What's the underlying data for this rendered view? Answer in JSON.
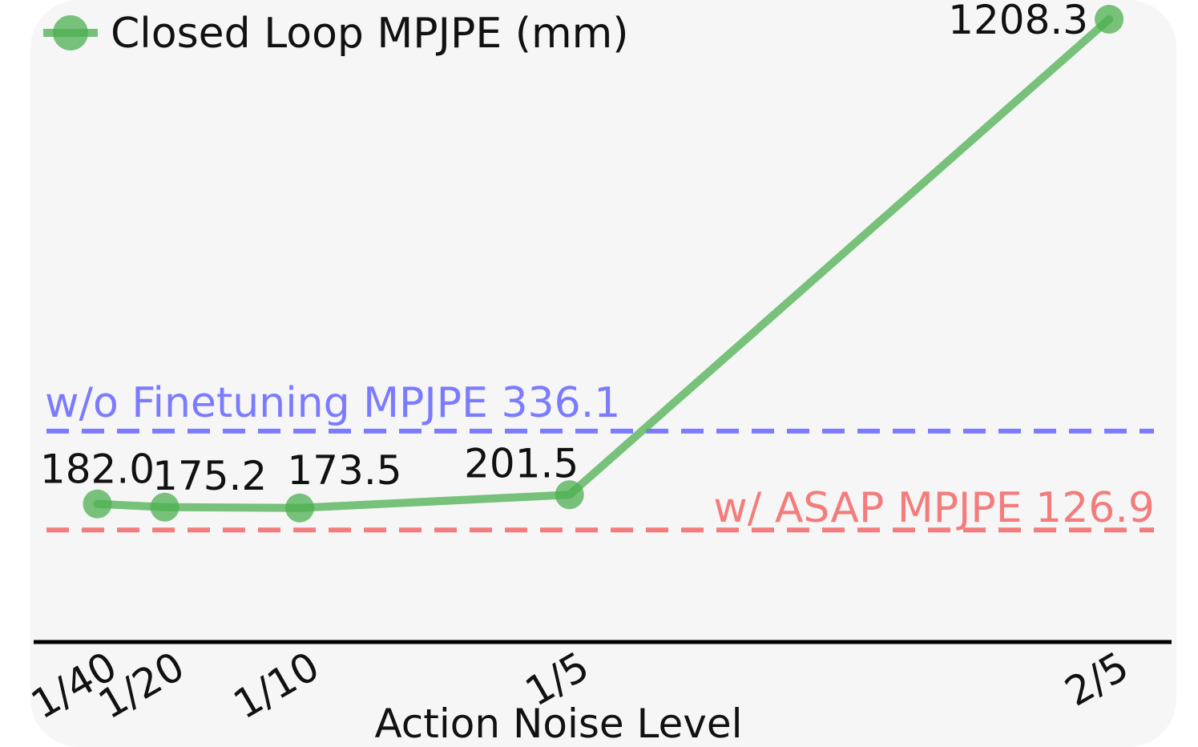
{
  "chart_data": {
    "type": "line",
    "xlabel": "Action Noise Level",
    "ylabel": "",
    "x": [
      0.025,
      0.05,
      0.1,
      0.2,
      0.4
    ],
    "x_tick_labels": [
      "1/40",
      "1/20",
      "1/10",
      "1/5",
      "2/5"
    ],
    "series": [
      {
        "name": "Closed Loop MPJPE (mm)",
        "values": [
          182.0,
          175.2,
          173.5,
          201.5,
          1208.3
        ],
        "labels": [
          "182.0",
          "175.2",
          "173.5",
          "201.5",
          "1208.3"
        ],
        "color": "#4caf50"
      }
    ],
    "reference_lines": [
      {
        "label": "w/o Finetuning MPJPE 336.1",
        "value": 336.1,
        "color": "#7b7bff",
        "style": "dashed"
      },
      {
        "label": "w/ ASAP MPJPE 126.9",
        "value": 126.9,
        "color": "#f47c7c",
        "style": "dashed"
      }
    ],
    "legend": {
      "position": "top-left"
    },
    "grid": false,
    "background": "#f6f6f6"
  }
}
